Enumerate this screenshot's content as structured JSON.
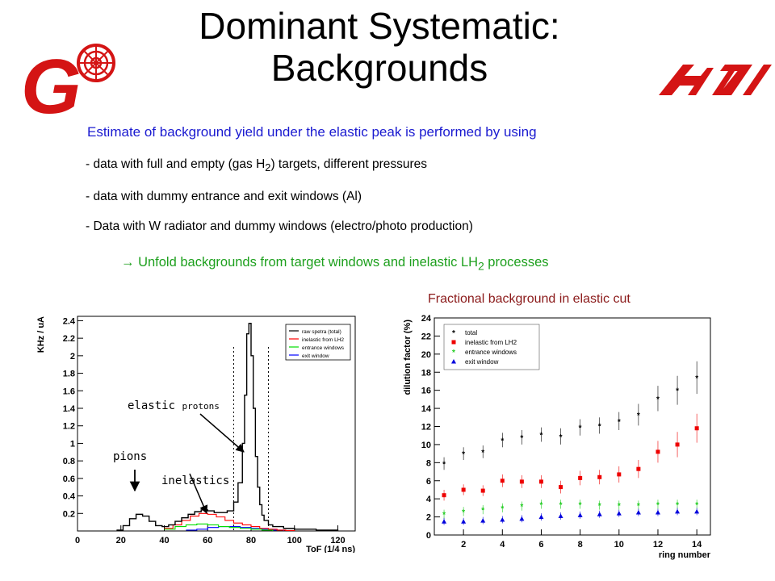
{
  "slide": {
    "title_line1": "Dominant Systematic:",
    "title_line2": "Backgrounds",
    "intro": "Estimate of background yield under the elastic peak is performed by using",
    "bullets": [
      {
        "pre": "- data with full and empty (gas H",
        "sub": "2",
        "post": ") targets, different pressures"
      },
      {
        "pre": "- data with dummy entrance and exit windows  (Al)",
        "sub": "",
        "post": ""
      },
      {
        "pre": "- Data with W radiator and dummy windows (electro/photo production)",
        "sub": "",
        "post": ""
      }
    ],
    "conclusion": {
      "arrow": "→",
      "pre": " Unfold backgrounds from target windows and inelastic LH",
      "sub": "2",
      "post": " processes"
    },
    "fraction_caption": "Fractional background in elastic cut",
    "logos": {
      "left_letter": "G",
      "left_color": "#d41414",
      "right_color": "#d41414"
    }
  },
  "spectrum_plot": {
    "annotations": {
      "elastic": "elastic",
      "protons": "protons",
      "pions": "pions",
      "inelastics": "inelastics"
    }
  },
  "chart_data": [
    {
      "type": "line",
      "xlabel": "ToF (1/4 ns)",
      "ylabel": "KHz / uA",
      "xlim": [
        0,
        128
      ],
      "ylim": [
        0,
        2.45
      ],
      "xticks": [
        0,
        20,
        40,
        60,
        80,
        100,
        120
      ],
      "yticks": [
        0.2,
        0.4,
        0.6,
        0.8,
        1,
        1.2,
        1.4,
        1.6,
        1.8,
        2,
        2.2,
        2.4
      ],
      "cut_lines_x": [
        72,
        88
      ],
      "legend_position": "top-right",
      "series": [
        {
          "name": "raw spetra (total)",
          "color": "#000000",
          "x": [
            18,
            21,
            24,
            27,
            30,
            33,
            36,
            39,
            42,
            45,
            48,
            51,
            54,
            57,
            60,
            63,
            66,
            69,
            72,
            74,
            76,
            77,
            78,
            79,
            80,
            81,
            82,
            83,
            84,
            85,
            86,
            88,
            90,
            95,
            100,
            110,
            120
          ],
          "y": [
            0.01,
            0.06,
            0.14,
            0.19,
            0.17,
            0.11,
            0.06,
            0.05,
            0.07,
            0.11,
            0.15,
            0.19,
            0.22,
            0.24,
            0.23,
            0.21,
            0.21,
            0.23,
            0.33,
            0.55,
            1.0,
            1.55,
            2.25,
            2.37,
            2.0,
            1.4,
            0.85,
            0.5,
            0.3,
            0.18,
            0.12,
            0.07,
            0.05,
            0.03,
            0.02,
            0.01,
            0.0
          ]
        },
        {
          "name": "inelastic from LH2",
          "color": "#ff0000",
          "x": [
            40,
            44,
            48,
            52,
            56,
            60,
            64,
            68,
            72,
            76,
            80,
            84,
            88,
            92,
            96,
            100
          ],
          "y": [
            0.03,
            0.07,
            0.12,
            0.17,
            0.2,
            0.19,
            0.16,
            0.12,
            0.09,
            0.07,
            0.05,
            0.03,
            0.02,
            0.01,
            0.005,
            0.0
          ]
        },
        {
          "name": "entrance windows",
          "color": "#00dd00",
          "x": [
            40,
            45,
            50,
            55,
            60,
            65,
            70,
            75,
            80,
            85,
            90
          ],
          "y": [
            0.02,
            0.05,
            0.07,
            0.08,
            0.07,
            0.05,
            0.04,
            0.03,
            0.02,
            0.01,
            0.0
          ]
        },
        {
          "name": "exit window",
          "color": "#0000ff",
          "x": [
            50,
            55,
            60,
            65,
            70,
            75,
            80,
            85,
            90,
            95
          ],
          "y": [
            0.01,
            0.02,
            0.04,
            0.05,
            0.05,
            0.04,
            0.03,
            0.02,
            0.01,
            0.0
          ]
        }
      ]
    },
    {
      "type": "scatter",
      "xlabel": "ring number",
      "ylabel": "dilution factor  (%)",
      "xlim": [
        0.5,
        14.7
      ],
      "ylim": [
        0,
        24
      ],
      "xticks": [
        2,
        4,
        6,
        8,
        10,
        12,
        14
      ],
      "yticks": [
        0,
        2,
        4,
        6,
        8,
        10,
        12,
        14,
        16,
        18,
        20,
        22,
        24
      ],
      "legend_position": "top-left",
      "series": [
        {
          "name": "total",
          "color": "#000000",
          "marker": "star",
          "x": [
            1,
            2,
            3,
            4,
            5,
            6,
            7,
            8,
            9,
            10,
            11,
            12,
            13,
            14
          ],
          "y": [
            7.9,
            9.0,
            9.2,
            10.5,
            10.8,
            11.1,
            10.9,
            11.9,
            12.1,
            12.6,
            13.3,
            15.1,
            16.0,
            17.4
          ],
          "err": [
            0.7,
            0.7,
            0.7,
            0.8,
            0.8,
            0.8,
            0.9,
            0.9,
            0.9,
            1.0,
            1.2,
            1.4,
            1.6,
            1.8
          ]
        },
        {
          "name": "inelastic from LH2",
          "color": "#ee0000",
          "marker": "square",
          "x": [
            1,
            2,
            3,
            4,
            5,
            6,
            7,
            8,
            9,
            10,
            11,
            12,
            13,
            14
          ],
          "y": [
            4.4,
            5.0,
            4.9,
            6.0,
            5.9,
            5.9,
            5.3,
            6.3,
            6.4,
            6.7,
            7.3,
            9.2,
            10.0,
            11.8
          ],
          "err": [
            0.6,
            0.6,
            0.6,
            0.7,
            0.7,
            0.7,
            0.7,
            0.8,
            0.8,
            0.9,
            1.0,
            1.2,
            1.4,
            1.6
          ]
        },
        {
          "name": "entrance windows",
          "color": "#22cc22",
          "marker": "star",
          "x": [
            1,
            2,
            3,
            4,
            5,
            6,
            7,
            8,
            9,
            10,
            11,
            12,
            13,
            14
          ],
          "y": [
            2.3,
            2.6,
            2.8,
            3.0,
            3.2,
            3.4,
            3.4,
            3.4,
            3.3,
            3.3,
            3.3,
            3.4,
            3.4,
            3.4
          ],
          "err": [
            0.5,
            0.5,
            0.5,
            0.5,
            0.5,
            0.5,
            0.5,
            0.5,
            0.5,
            0.5,
            0.5,
            0.5,
            0.5,
            0.5
          ]
        },
        {
          "name": "exit window",
          "color": "#0000dd",
          "marker": "triangle",
          "x": [
            1,
            2,
            3,
            4,
            5,
            6,
            7,
            8,
            9,
            10,
            11,
            12,
            13,
            14
          ],
          "y": [
            1.5,
            1.5,
            1.6,
            1.7,
            1.8,
            2.0,
            2.1,
            2.2,
            2.3,
            2.4,
            2.5,
            2.5,
            2.6,
            2.6
          ],
          "err": [
            0.4,
            0.4,
            0.4,
            0.4,
            0.4,
            0.4,
            0.4,
            0.4,
            0.4,
            0.4,
            0.4,
            0.4,
            0.4,
            0.4
          ]
        }
      ]
    }
  ]
}
